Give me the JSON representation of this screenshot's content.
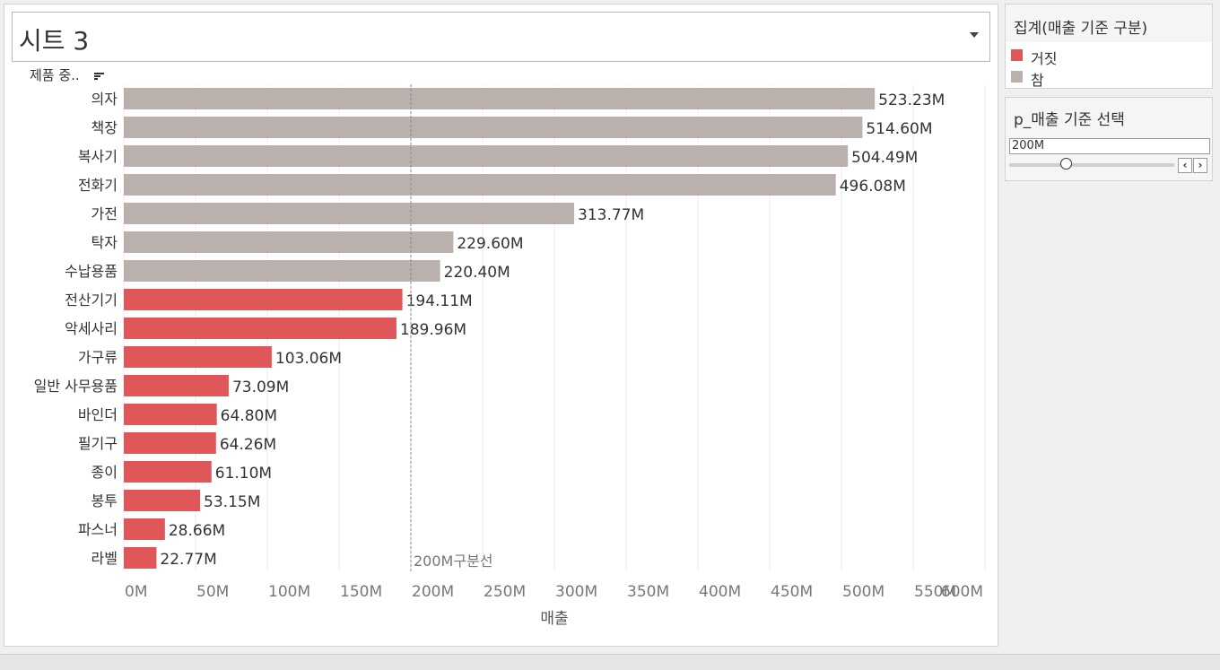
{
  "sheet": {
    "title": "시트 3",
    "field_header": "제품 중.."
  },
  "legend": {
    "title": "집계(매출 기준 구분)",
    "items": [
      {
        "label": "거짓",
        "color": "#e05759"
      },
      {
        "label": "참",
        "color": "#bab0ac"
      }
    ]
  },
  "parameter": {
    "title": "p_매출 기준 선택",
    "value": "200M"
  },
  "chart_data": {
    "type": "bar",
    "orientation": "horizontal",
    "categories": [
      "의자",
      "책장",
      "복사기",
      "전화기",
      "가전",
      "탁자",
      "수납용품",
      "전산기기",
      "악세사리",
      "가구류",
      "일반 사무용품",
      "바인더",
      "필기구",
      "종이",
      "봉투",
      "파스너",
      "라벨"
    ],
    "values": [
      523.23,
      514.6,
      504.49,
      496.08,
      313.77,
      229.6,
      220.4,
      194.11,
      189.96,
      103.06,
      73.09,
      64.8,
      64.26,
      61.1,
      53.15,
      28.66,
      22.77
    ],
    "value_labels": [
      "523.23M",
      "514.60M",
      "504.49M",
      "496.08M",
      "313.77M",
      "229.60M",
      "220.40M",
      "194.11M",
      "189.96M",
      "103.06M",
      "73.09M",
      "64.80M",
      "64.26M",
      "61.10M",
      "53.15M",
      "28.66M",
      "22.77M"
    ],
    "groups": [
      "참",
      "참",
      "참",
      "참",
      "참",
      "참",
      "참",
      "거짓",
      "거짓",
      "거짓",
      "거짓",
      "거짓",
      "거짓",
      "거짓",
      "거짓",
      "거짓",
      "거짓"
    ],
    "colors": {
      "참": "#bab0ac",
      "거짓": "#e05759"
    },
    "xlabel": "매출",
    "xlim": [
      0,
      600
    ],
    "xticks": [
      0,
      50,
      100,
      150,
      200,
      250,
      300,
      350,
      400,
      450,
      500,
      550,
      600
    ],
    "xtick_labels": [
      "0M",
      "50M",
      "100M",
      "150M",
      "200M",
      "250M",
      "300M",
      "350M",
      "400M",
      "450M",
      "500M",
      "550M",
      "600M"
    ],
    "reference_line": {
      "value": 200,
      "label": "200M구분선"
    },
    "grid": true
  }
}
